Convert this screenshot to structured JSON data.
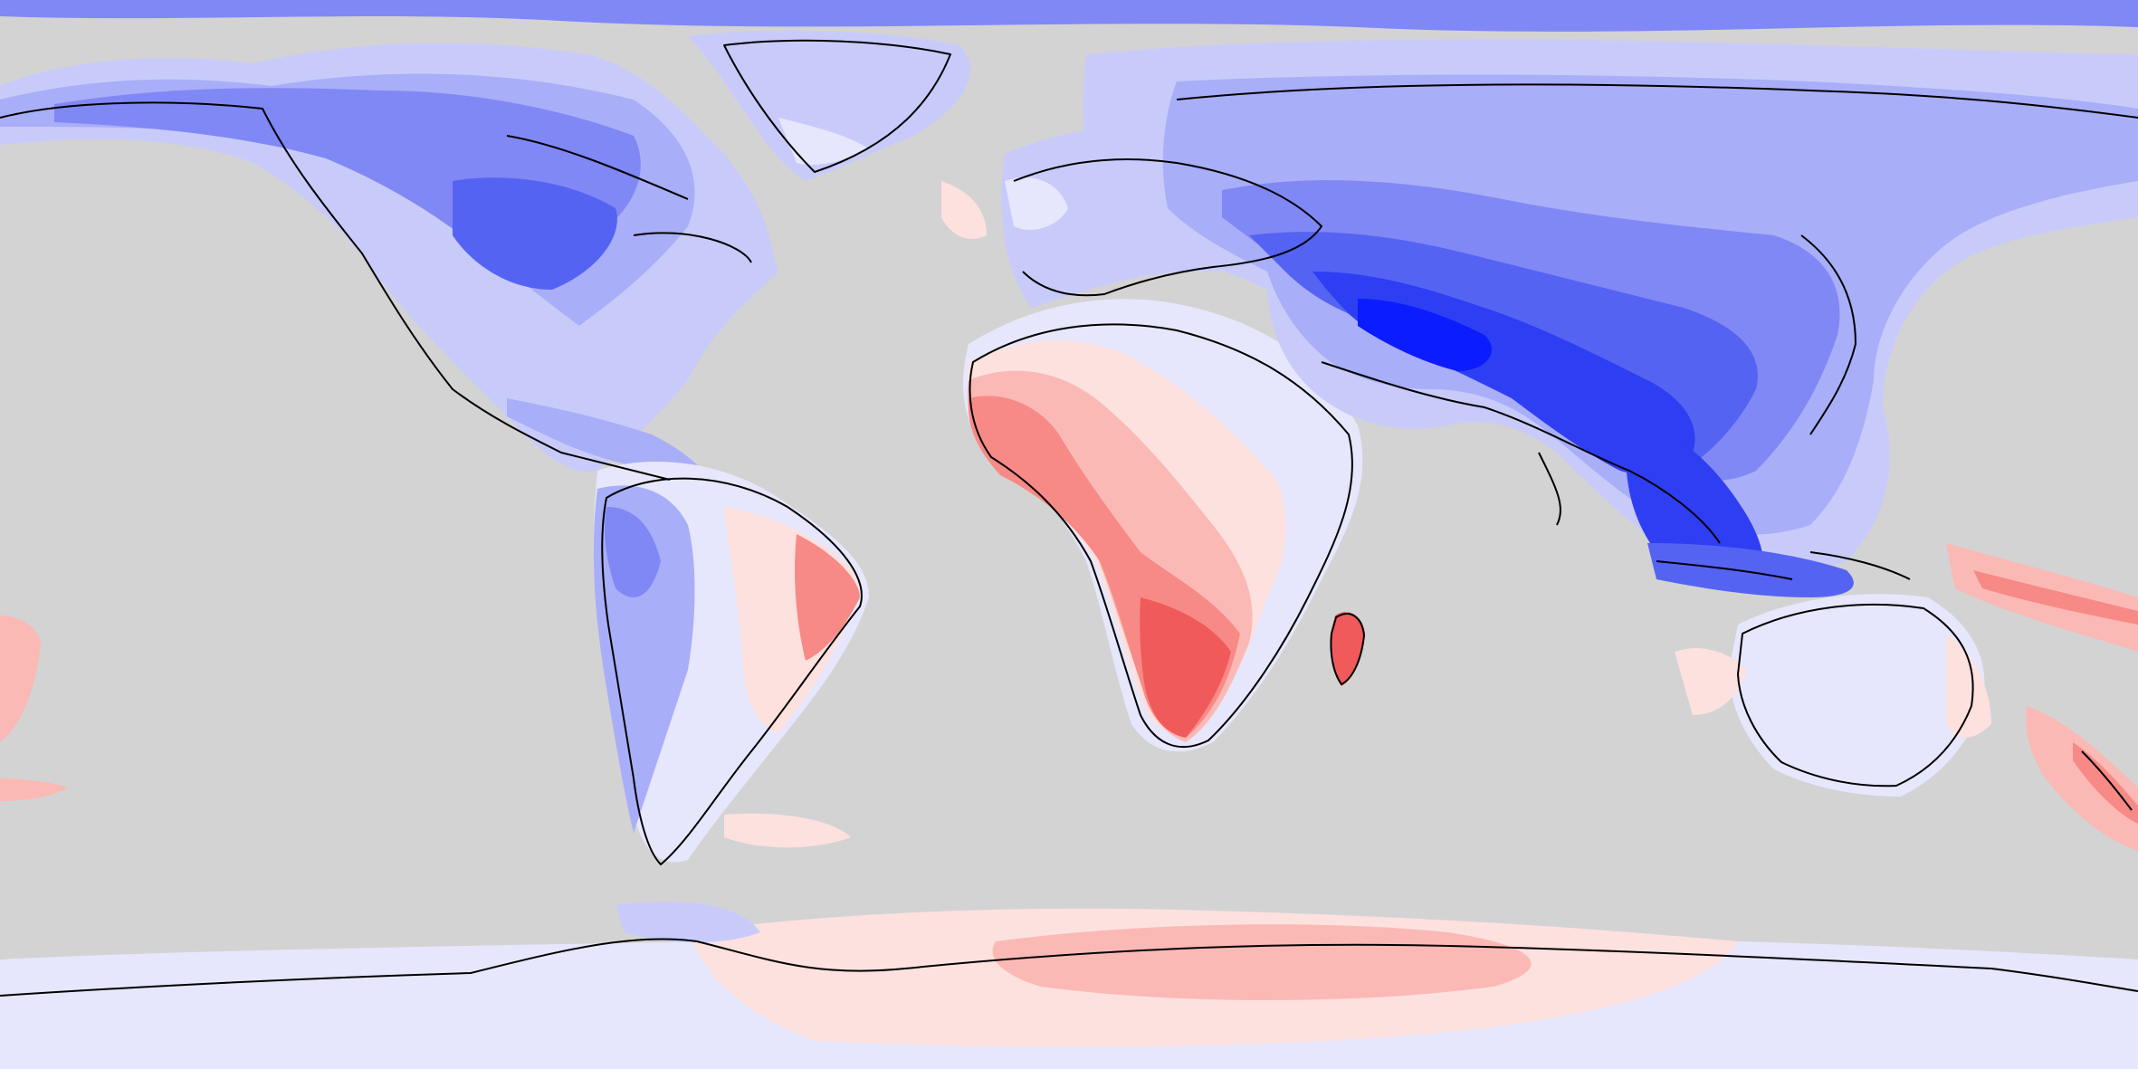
{
  "map": {
    "projection": "equirectangular",
    "background_color": "#d3d3d3",
    "coastline_color": "#000000",
    "legend_visible": false,
    "title": "",
    "palette": {
      "deep_blue": "#0b1cff",
      "blue_1": "#2e3ef2",
      "blue_2": "#5563f3",
      "blue_3": "#8088f5",
      "blue_4": "#a9aef8",
      "blue_5": "#c8cbfa",
      "blue_6": "#e6e7fc",
      "pink_1": "#fde1df",
      "pink_2": "#fbb9b5",
      "red_1": "#f78a86",
      "red_2": "#f05a5a",
      "red_3": "#e83a3a"
    },
    "continents": [
      "north-america",
      "greenland",
      "south-america",
      "europe",
      "africa",
      "asia",
      "australia",
      "antarctica"
    ]
  }
}
